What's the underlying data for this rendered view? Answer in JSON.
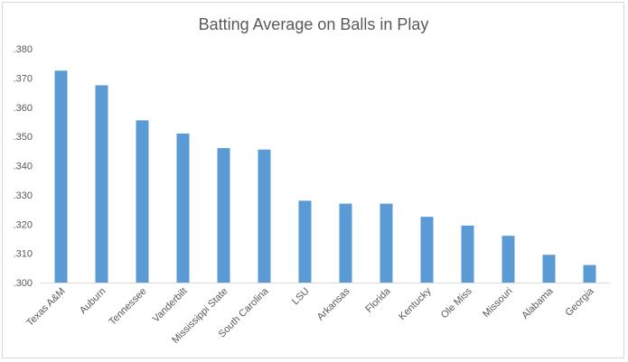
{
  "chart_data": {
    "type": "bar",
    "title": "Batting Average on Balls in Play",
    "xlabel": "",
    "ylabel": "",
    "categories": [
      "Texas A&M",
      "Auburn",
      "Tennessee",
      "Vanderbilt",
      "Mississippi State",
      "South Carolina",
      "LSU",
      "Arkansas",
      "Florida",
      "Kentucky",
      "Ole Miss",
      "Missouri",
      "Alabama",
      "Georgia"
    ],
    "values": [
      0.3725,
      0.3675,
      0.3555,
      0.351,
      0.346,
      0.3455,
      0.328,
      0.327,
      0.327,
      0.3225,
      0.3195,
      0.316,
      0.3095,
      0.306
    ],
    "ylim": [
      0.3,
      0.38
    ],
    "yticks": [
      ".300",
      ".310",
      ".320",
      ".330",
      ".340",
      ".350",
      ".360",
      ".370",
      ".380"
    ],
    "ytick_values": [
      0.3,
      0.31,
      0.32,
      0.33,
      0.34,
      0.35,
      0.36,
      0.37,
      0.38
    ],
    "grid": false,
    "legend": "none",
    "bar_color": "#5b9bd5"
  }
}
